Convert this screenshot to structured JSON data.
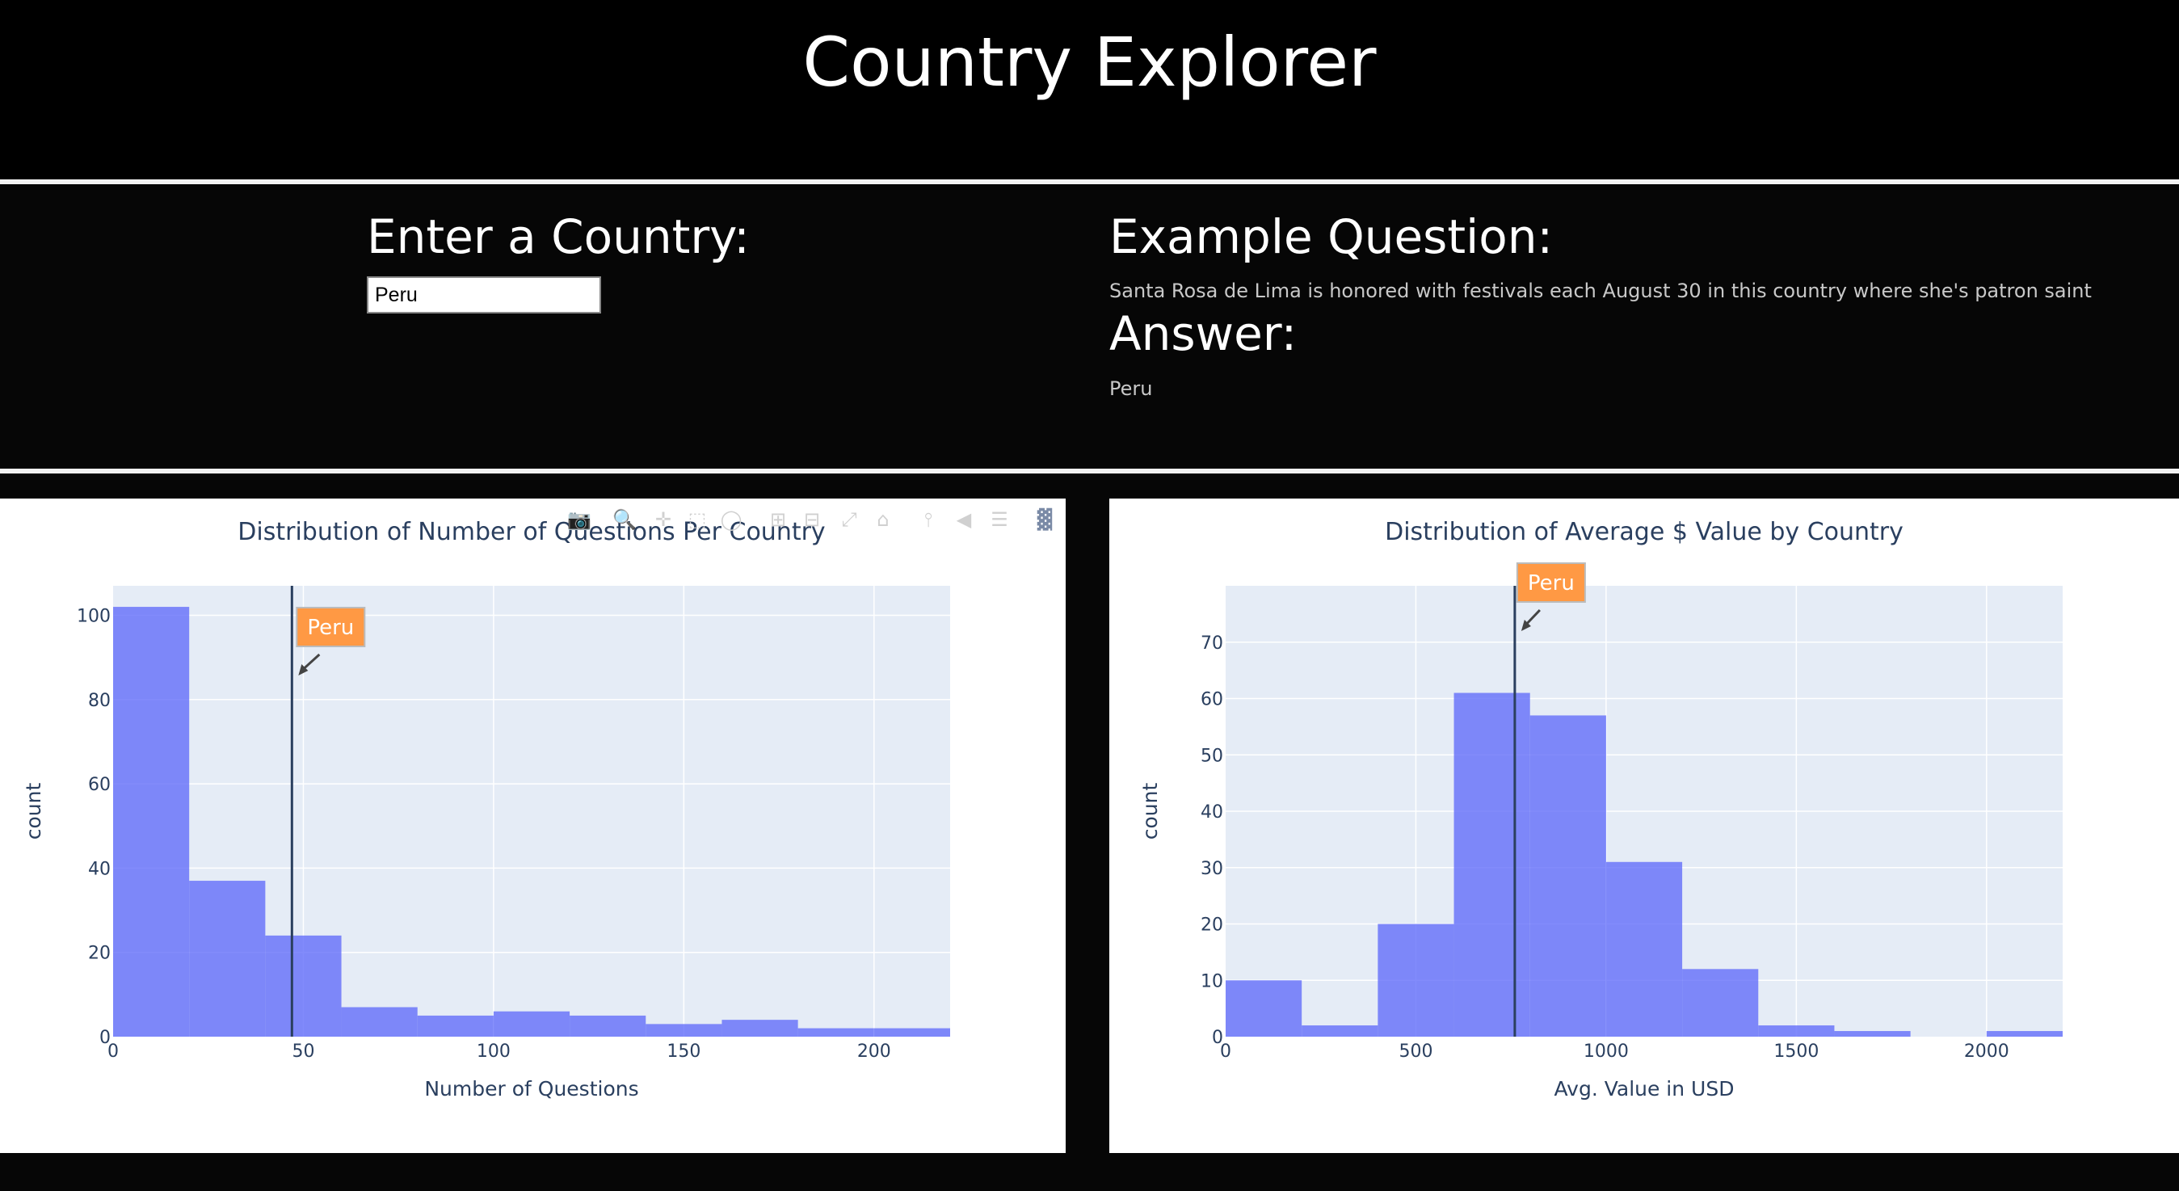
{
  "app": {
    "title": "Country Explorer"
  },
  "input_section": {
    "heading": "Enter a Country:",
    "country_value": "Peru"
  },
  "example_section": {
    "question_heading": "Example Question:",
    "question_text": "Santa Rosa de Lima is honored with festivals each August 30 in this country where she's patron saint",
    "answer_heading": "Answer:",
    "answer_text": "Peru"
  },
  "modebar": {
    "icons": [
      "camera-icon",
      "zoom-icon",
      "pan-icon",
      "box-select-icon",
      "lasso-select-icon",
      "zoom-in-icon",
      "zoom-out-icon",
      "autoscale-icon",
      "reset-axes-icon",
      "toggle-spike-lines-icon",
      "hover-closest-icon",
      "hover-compare-icon",
      "plotly-logo-icon"
    ]
  },
  "chart_data": [
    {
      "type": "bar",
      "title": "Distribution of Number of Questions Per Country",
      "xlabel": "Number of Questions",
      "ylabel": "count",
      "xlim": [
        0,
        220
      ],
      "ylim": [
        0,
        107
      ],
      "xticks": [
        0,
        50,
        100,
        150,
        200
      ],
      "yticks": [
        0,
        20,
        40,
        60,
        80,
        100
      ],
      "bin_width": 20,
      "bin_starts": [
        0,
        20,
        40,
        60,
        80,
        100,
        120,
        140,
        160,
        180,
        200
      ],
      "values": [
        102,
        37,
        24,
        7,
        5,
        6,
        5,
        3,
        4,
        2,
        2
      ],
      "bar_color": "#636efa",
      "marker": {
        "x": 47,
        "label": "Peru"
      },
      "grid": true
    },
    {
      "type": "bar",
      "title": "Distribution of Average $ Value by Country",
      "xlabel": "Avg. Value in USD",
      "ylabel": "count",
      "xlim": [
        0,
        2200
      ],
      "ylim": [
        0,
        80
      ],
      "xticks": [
        0,
        500,
        1000,
        1500,
        2000
      ],
      "yticks": [
        0,
        10,
        20,
        30,
        40,
        50,
        60,
        70
      ],
      "bin_width": 200,
      "bin_starts": [
        0,
        200,
        400,
        600,
        800,
        1000,
        1200,
        1400,
        1600,
        1800,
        2000
      ],
      "values": [
        10,
        2,
        20,
        61,
        57,
        31,
        12,
        2,
        1,
        0,
        1
      ],
      "bar_color": "#636efa",
      "marker": {
        "x": 760,
        "label": "Peru"
      },
      "grid": true
    }
  ],
  "colors": {
    "page_bg": "#060606",
    "plot_bg": "#e5ecf6",
    "bar": "#636efa",
    "annotation_bg": "#ff9944",
    "axis_text": "#2a3f5f",
    "marker_line": "#2a3f5f"
  }
}
